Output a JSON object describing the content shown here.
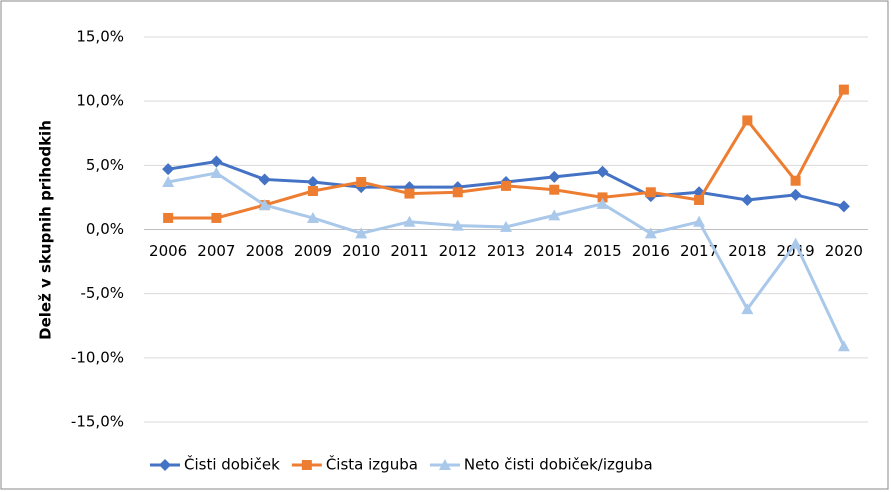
{
  "chart_data": {
    "type": "line",
    "y_label": "Delež v skupnih prihodkih",
    "categories": [
      "2006",
      "2007",
      "2008",
      "2009",
      "2010",
      "2011",
      "2012",
      "2013",
      "2014",
      "2015",
      "2016",
      "2017",
      "2018",
      "2019",
      "2020"
    ],
    "series": [
      {
        "name": "Čisti dobiček",
        "color": "#4472c4",
        "marker": "diamond",
        "values": [
          4.7,
          5.3,
          3.9,
          3.7,
          3.3,
          3.3,
          3.3,
          3.7,
          4.1,
          4.5,
          2.6,
          2.9,
          2.3,
          2.7,
          1.8
        ]
      },
      {
        "name": "Čista izguba",
        "color": "#ed7d31",
        "marker": "square",
        "values": [
          0.9,
          0.9,
          1.9,
          3.0,
          3.7,
          2.8,
          2.9,
          3.4,
          3.1,
          2.5,
          2.9,
          2.3,
          8.5,
          3.8,
          10.9
        ]
      },
      {
        "name": "Neto čisti dobiček/izguba",
        "color": "#a9c8ea",
        "marker": "triangle",
        "values": [
          3.7,
          4.4,
          1.9,
          0.9,
          -0.3,
          0.6,
          0.3,
          0.2,
          1.1,
          2.0,
          -0.3,
          0.6,
          -6.2,
          -1.1,
          -9.1
        ]
      }
    ],
    "ylim": [
      -15,
      15
    ],
    "yticks": [
      {
        "value": -15,
        "label": "-15,0%"
      },
      {
        "value": -10,
        "label": "-10,0%"
      },
      {
        "value": -5,
        "label": "-5,0%"
      },
      {
        "value": 0,
        "label": "0,0%"
      },
      {
        "value": 5,
        "label": "5,0%"
      },
      {
        "value": 10,
        "label": "10,0%"
      },
      {
        "value": 15,
        "label": "15,0%"
      }
    ],
    "grid": true,
    "legend": "bottom"
  }
}
